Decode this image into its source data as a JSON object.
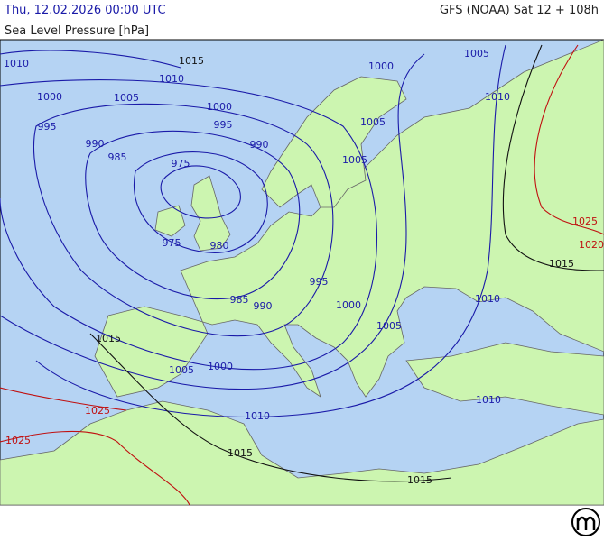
{
  "header": {
    "title": "Thu, 12.02.2026 00:00 UTC",
    "model_run": "GFS (NOAA) Sat 12 + 108h",
    "subtitle": "Sea Level Pressure [hPa]"
  },
  "map": {
    "isobar_labels": [
      {
        "text": "1010",
        "color": "#1a1aa8"
      },
      {
        "text": "1015",
        "color": "#111111"
      },
      {
        "text": "1010",
        "color": "#1a1aa8"
      },
      {
        "text": "1000",
        "color": "#1a1aa8"
      },
      {
        "text": "1005",
        "color": "#1a1aa8"
      },
      {
        "text": "1000",
        "color": "#1a1aa8"
      },
      {
        "text": "1005",
        "color": "#1a1aa8"
      },
      {
        "text": "1000",
        "color": "#1a1aa8"
      },
      {
        "text": "1010",
        "color": "#1a1aa8"
      },
      {
        "text": "995",
        "color": "#1a1aa8"
      },
      {
        "text": "995",
        "color": "#1a1aa8"
      },
      {
        "text": "1005",
        "color": "#1a1aa8"
      },
      {
        "text": "990",
        "color": "#1a1aa8"
      },
      {
        "text": "990",
        "color": "#1a1aa8"
      },
      {
        "text": "985",
        "color": "#1a1aa8"
      },
      {
        "text": "1005",
        "color": "#1a1aa8"
      },
      {
        "text": "975",
        "color": "#1a1aa8"
      },
      {
        "text": "975",
        "color": "#1a1aa8"
      },
      {
        "text": "980",
        "color": "#1a1aa8"
      },
      {
        "text": "1025",
        "color": "#c01010"
      },
      {
        "text": "1020",
        "color": "#c01010"
      },
      {
        "text": "1015",
        "color": "#111111"
      },
      {
        "text": "995",
        "color": "#1a1aa8"
      },
      {
        "text": "985",
        "color": "#1a1aa8"
      },
      {
        "text": "990",
        "color": "#1a1aa8"
      },
      {
        "text": "1000",
        "color": "#1a1aa8"
      },
      {
        "text": "1010",
        "color": "#1a1aa8"
      },
      {
        "text": "1005",
        "color": "#1a1aa8"
      },
      {
        "text": "1015",
        "color": "#111111"
      },
      {
        "text": "1005",
        "color": "#1a1aa8"
      },
      {
        "text": "1000",
        "color": "#1a1aa8"
      },
      {
        "text": "1010",
        "color": "#1a1aa8"
      },
      {
        "text": "1025",
        "color": "#c01010"
      },
      {
        "text": "1010",
        "color": "#1a1aa8"
      },
      {
        "text": "1025",
        "color": "#c01010"
      },
      {
        "text": "1015",
        "color": "#111111"
      },
      {
        "text": "1015",
        "color": "#111111"
      }
    ]
  }
}
